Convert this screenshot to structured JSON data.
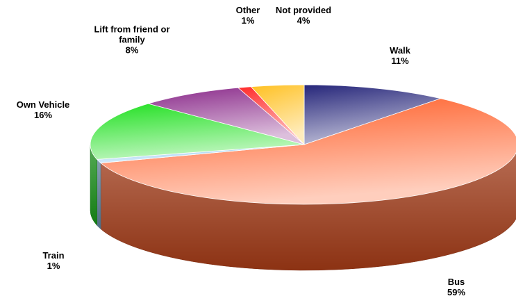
{
  "chart_data": {
    "type": "pie3d",
    "categories": [
      "Walk",
      "Bus",
      "Train",
      "Own Vehicle",
      "Lift from friend or family",
      "Other",
      "Not provided"
    ],
    "values": [
      11,
      59,
      1,
      16,
      8,
      1,
      4
    ],
    "value_labels": [
      "11%",
      "59%",
      "1%",
      "16%",
      "8%",
      "1%",
      "4%"
    ],
    "colors": [
      "#26267a",
      "#ff5a22",
      "#8fc8f0",
      "#22e022",
      "#8a2a8a",
      "#ff2a2a",
      "#ffc020"
    ]
  }
}
